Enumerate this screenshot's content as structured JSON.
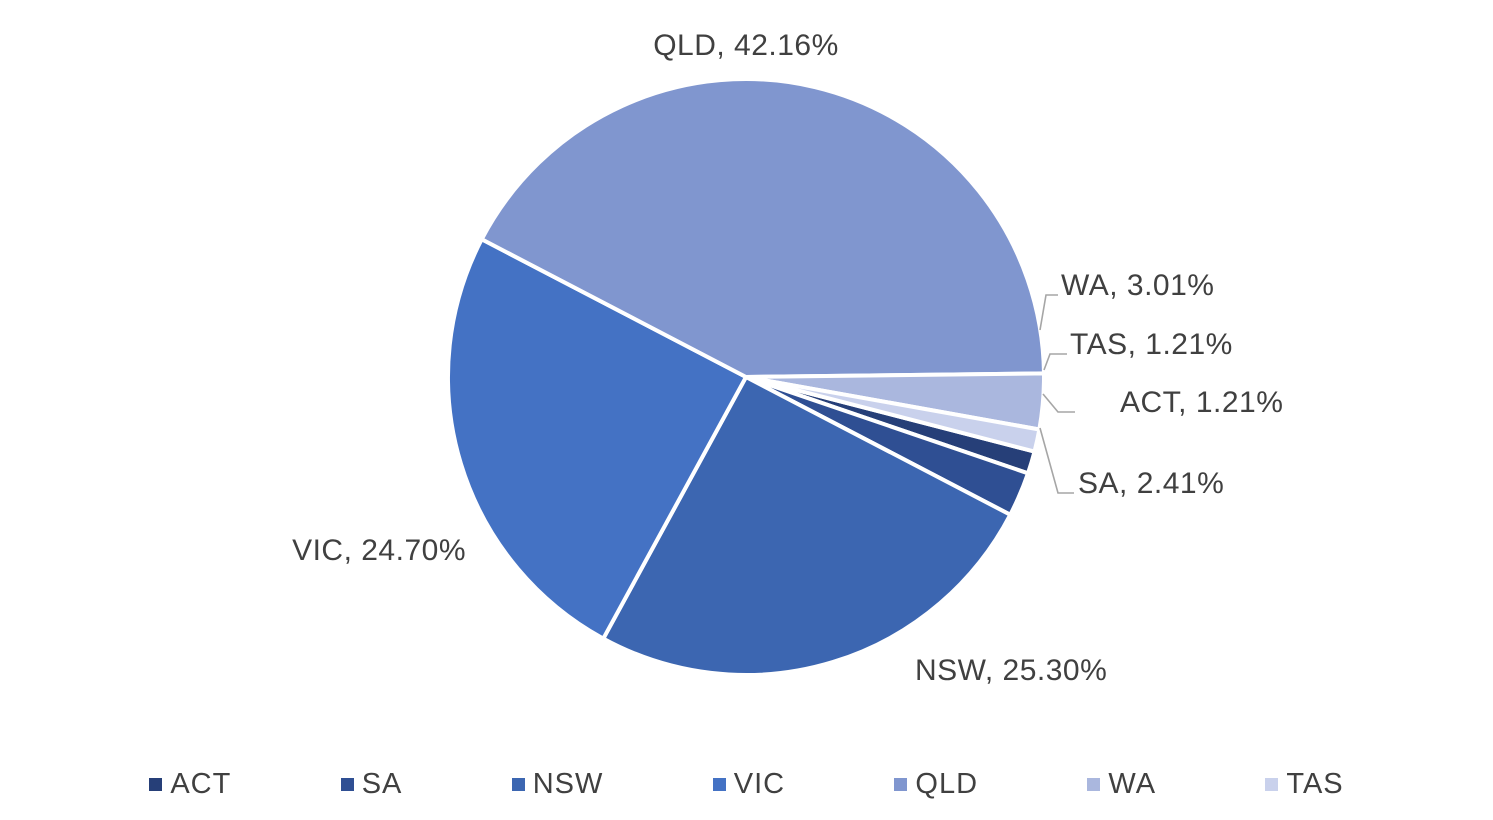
{
  "chart_data": {
    "type": "pie",
    "title": "",
    "slices": [
      {
        "label": "ACT",
        "value": 1.21,
        "text": "ACT, 1.21%",
        "color": "#263f78"
      },
      {
        "label": "SA",
        "value": 2.41,
        "text": "SA, 2.41%",
        "color": "#2f4f93"
      },
      {
        "label": "NSW",
        "value": 25.3,
        "text": "NSW, 25.30%",
        "color": "#3c66b1"
      },
      {
        "label": "VIC",
        "value": 24.7,
        "text": "VIC, 24.70%",
        "color": "#4472c4"
      },
      {
        "label": "QLD",
        "value": 42.16,
        "text": "QLD, 42.16%",
        "color": "#8096cf"
      },
      {
        "label": "WA",
        "value": 3.01,
        "text": "WA, 3.01%",
        "color": "#aab7de"
      },
      {
        "label": "TAS",
        "value": 1.21,
        "text": "TAS, 1.21%",
        "color": "#c9d1ec"
      }
    ],
    "legend": {
      "position": "bottom",
      "entries": [
        "ACT",
        "SA",
        "NSW",
        "VIC",
        "QLD",
        "WA",
        "TAS"
      ]
    }
  }
}
